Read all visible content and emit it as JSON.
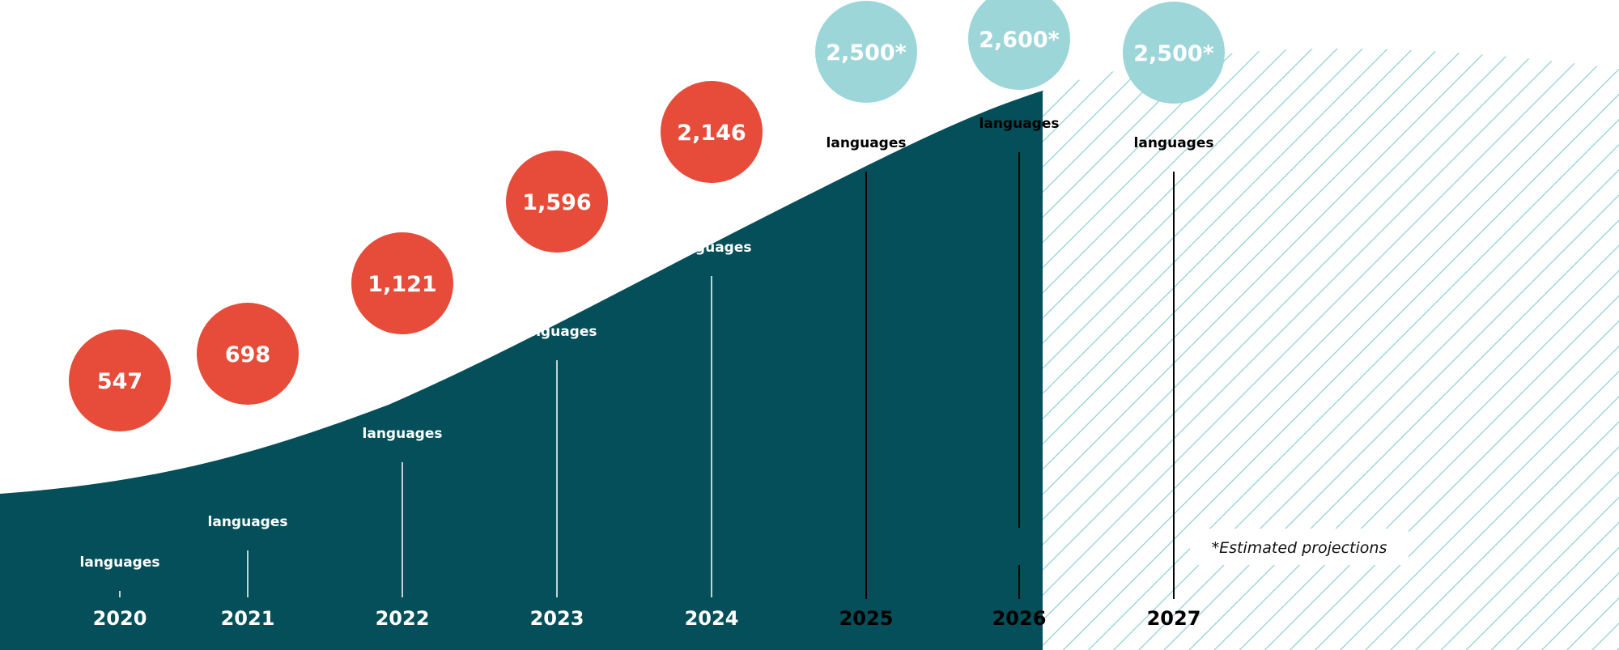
{
  "chart_data": {
    "type": "area",
    "title": "",
    "unit_label": "languages",
    "categories": [
      "2020",
      "2021",
      "2022",
      "2023",
      "2024",
      "2025",
      "2026",
      "2027"
    ],
    "values": [
      547,
      698,
      1121,
      1596,
      2146,
      2500,
      2600,
      2500
    ],
    "value_labels": [
      "547",
      "698",
      "1,121",
      "1,596",
      "2,146",
      "2,500*",
      "2,600*",
      "2,500*"
    ],
    "projected": [
      false,
      false,
      false,
      false,
      false,
      true,
      true,
      true
    ],
    "note": "*Estimated projections",
    "colors": {
      "actual_area": "#044f59",
      "actual_marker": "#e64c39",
      "projected_marker": "#9dd6d8",
      "projected_hatch": "#8fd0d3"
    }
  }
}
